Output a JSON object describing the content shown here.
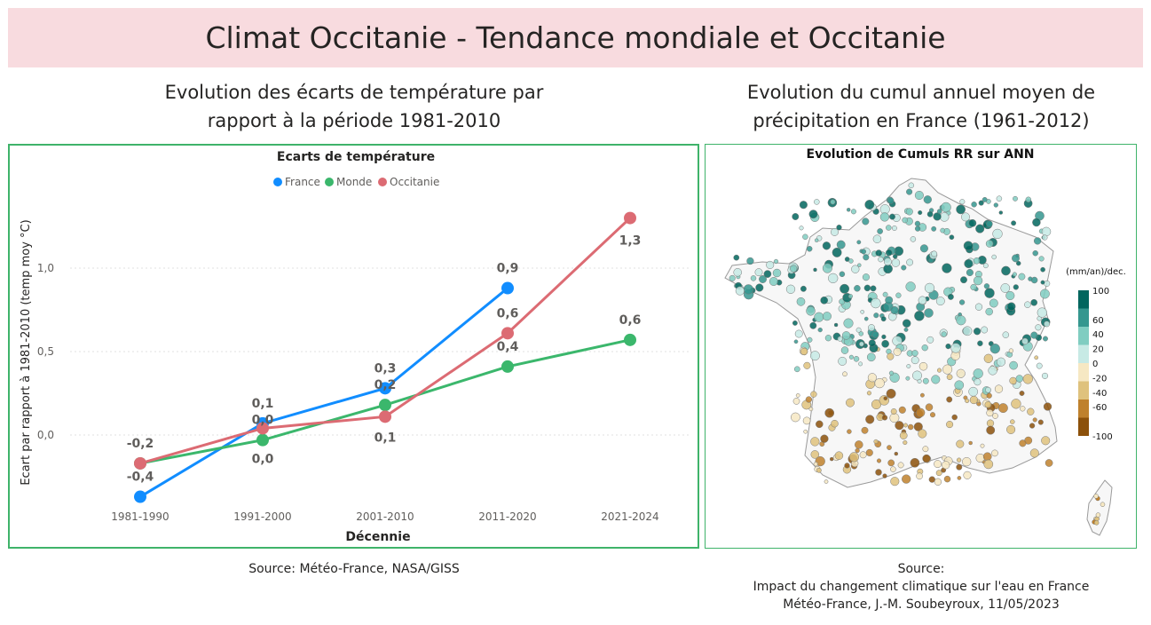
{
  "page": {
    "title": "Climat Occitanie - Tendance mondiale et Occitanie"
  },
  "left": {
    "section_title_line1": "Evolution des écarts de température par",
    "section_title_line2": "rapport à la période 1981-2010",
    "source": "Source: Météo-France, NASA/GISS"
  },
  "right": {
    "section_title_line1": "Evolution du cumul annuel moyen de",
    "section_title_line2": "précipitation en France (1961-2012)",
    "source_line1": "Source:",
    "source_line2": "Impact du changement climatique sur l'eau en France",
    "source_line3": "Météo-France, J.-M. Soubeyroux, 11/05/2023",
    "map": {
      "title": "Evolution de Cumuls RR sur ANN",
      "legend_unit": "(mm/an)/dec.",
      "legend_ticks": [
        "100",
        "60",
        "40",
        "20",
        "0",
        "-20",
        "-40",
        "-60",
        "-100"
      ],
      "legend_colors": [
        "#01665e",
        "#35978f",
        "#80cdc1",
        "#c7eae5",
        "#f6e8c3",
        "#dfc27d",
        "#bf812d",
        "#8c510a"
      ]
    }
  },
  "chart_data": {
    "type": "line",
    "title": "Ecarts de température",
    "xlabel": "Décennie",
    "ylabel": "Ecart par rapport à 1981-2010 (temp moy °C)",
    "categories": [
      "1981-1990",
      "1991-2000",
      "2001-2010",
      "2011-2020",
      "2021-2024"
    ],
    "ylim": [
      -0.4,
      1.3
    ],
    "yticks": [
      0.0,
      0.5,
      1.0
    ],
    "ytick_labels": [
      "0,0",
      "0,5",
      "1,0"
    ],
    "grid": true,
    "legend_position": "top",
    "series": [
      {
        "name": "France",
        "color": "#118dff",
        "values": [
          -0.37,
          0.07,
          0.28,
          0.88,
          null
        ],
        "labels": [
          "-0,4",
          "0,1",
          "0,3",
          "0,9",
          ""
        ]
      },
      {
        "name": "Monde",
        "color": "#3bb76c",
        "values": [
          -0.17,
          -0.03,
          0.18,
          0.41,
          0.57
        ],
        "labels": [
          "",
          "0,0",
          "0,2",
          "0,4",
          "0,6"
        ]
      },
      {
        "name": "Occitanie",
        "color": "#dc6b73",
        "values": [
          -0.17,
          0.04,
          0.11,
          0.61,
          1.3
        ],
        "labels": [
          "-0,2",
          "0,0",
          "0,1",
          "0,6",
          "1,3"
        ]
      }
    ]
  }
}
